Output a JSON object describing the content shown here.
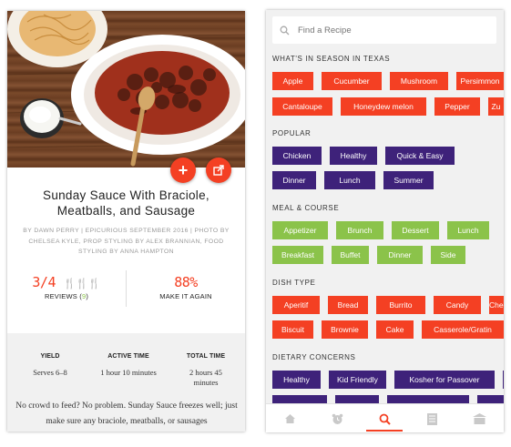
{
  "left": {
    "title": "Sunday Sauce With Braciole, Meatballs, and Sausage",
    "credits": "BY DAWN PERRY | EPICURIOUS SEPTEMBER 2016 | PHOTO BY CHELSEA KYLE, PROP STYLING BY ALEX BRANNIAN, FOOD STYLING BY ANNA HAMPTON",
    "rating": {
      "value": "3/4",
      "forks": "🍴🍴🍴",
      "label": "REVIEWS (",
      "count": "9",
      "label_end": ")"
    },
    "make_again": {
      "value": "88%",
      "label": "MAKE IT AGAIN"
    },
    "times": [
      {
        "label": "YIELD",
        "value": "Serves 6–8"
      },
      {
        "label": "ACTIVE TIME",
        "value": "1 hour 10 minutes"
      },
      {
        "label": "TOTAL TIME",
        "value": "2 hours 45 minutes"
      }
    ],
    "description": "No crowd to feed? No problem. Sunday Sauce freezes well; just make sure any braciole, meatballs, or sausages",
    "buttons": {
      "add": "+",
      "share": "↗"
    }
  },
  "right": {
    "search": {
      "placeholder": "Find a Recipe"
    },
    "sections": [
      {
        "title": "WHAT'S IN SEASON IN TEXAS",
        "color": "red",
        "rows": [
          [
            "Apple",
            "Cucumber",
            "Mushroom",
            "Persimmon"
          ],
          [
            "Cantaloupe",
            "Honeydew melon",
            "Pepper",
            "Zu"
          ]
        ]
      },
      {
        "title": "POPULAR",
        "color": "purple",
        "rows": [
          [
            "Chicken",
            "Healthy",
            "Quick & Easy"
          ],
          [
            "Dinner",
            "Lunch",
            "Summer"
          ]
        ]
      },
      {
        "title": "MEAL & COURSE",
        "color": "green",
        "rows": [
          [
            "Appetizer",
            "Brunch",
            "Dessert",
            "Lunch"
          ],
          [
            "Breakfast",
            "Buffet",
            "Dinner",
            "Side"
          ]
        ]
      },
      {
        "title": "DISH TYPE",
        "color": "red",
        "rows": [
          [
            "Aperitif",
            "Bread",
            "Burrito",
            "Candy",
            "Chee"
          ],
          [
            "Biscuit",
            "Brownie",
            "Cake",
            "Casserole/Gratin"
          ]
        ]
      },
      {
        "title": "DIETARY CONCERNS",
        "color": "purple",
        "rows": [
          [
            "Healthy",
            "Kid Friendly",
            "Kosher for Passover",
            ""
          ],
          [
            "",
            "",
            "",
            ""
          ]
        ]
      }
    ],
    "tabs": [
      "home-icon",
      "timer-icon",
      "search-icon",
      "list-icon",
      "recipe-box-icon"
    ],
    "active_tab": 2
  },
  "colors": {
    "red": "#f44023",
    "purple": "#3e227a",
    "green": "#8bc34a"
  }
}
